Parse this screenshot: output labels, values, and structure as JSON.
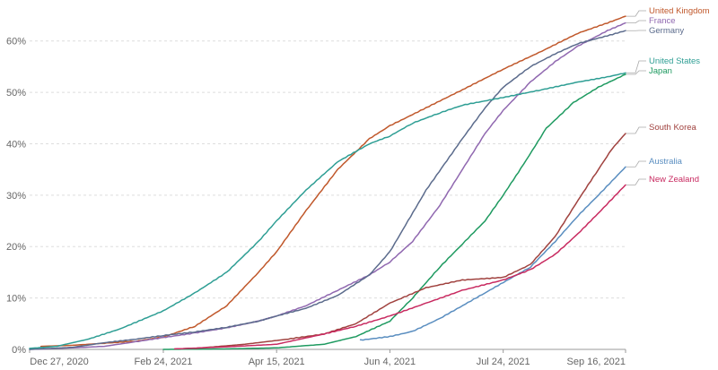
{
  "chart_data": {
    "type": "line",
    "title": "",
    "xlabel": "",
    "ylabel": "",
    "x_ticks": [
      "Dec 27, 2020",
      "Feb 24, 2021",
      "Apr 15, 2021",
      "Jun 4, 2021",
      "Jul 24, 2021",
      "Sep 16, 2021"
    ],
    "y_ticks": [
      "0%",
      "10%",
      "20%",
      "30%",
      "40%",
      "50%",
      "60%"
    ],
    "xlim": [
      "2020-12-27",
      "2021-09-16"
    ],
    "ylim": [
      0,
      65
    ],
    "grid": true,
    "legend": "end-of-line labels, right",
    "series": [
      {
        "name": "United Kingdom",
        "color": "#c0582b",
        "points": [
          [
            "2021-01-01",
            0.6
          ],
          [
            "2021-01-15",
            0.8
          ],
          [
            "2021-01-29",
            1.2
          ],
          [
            "2021-02-12",
            1.6
          ],
          [
            "2021-02-24",
            2.4
          ],
          [
            "2021-03-10",
            4.5
          ],
          [
            "2021-03-24",
            8.5
          ],
          [
            "2021-04-07",
            15
          ],
          [
            "2021-04-15",
            19
          ],
          [
            "2021-04-28",
            27
          ],
          [
            "2021-05-12",
            35
          ],
          [
            "2021-05-26",
            41
          ],
          [
            "2021-06-04",
            43.5
          ],
          [
            "2021-06-20",
            47
          ],
          [
            "2021-07-06",
            50.5
          ],
          [
            "2021-07-24",
            54.5
          ],
          [
            "2021-08-10",
            58
          ],
          [
            "2021-08-26",
            61.5
          ],
          [
            "2021-09-08",
            63.5
          ],
          [
            "2021-09-16",
            64.8
          ]
        ]
      },
      {
        "name": "France",
        "color": "#9068b0",
        "points": [
          [
            "2020-12-27",
            0
          ],
          [
            "2021-01-15",
            0.3
          ],
          [
            "2021-01-29",
            0.6
          ],
          [
            "2021-02-12",
            1.5
          ],
          [
            "2021-02-24",
            2.3
          ],
          [
            "2021-03-10",
            3.2
          ],
          [
            "2021-03-24",
            4.2
          ],
          [
            "2021-04-07",
            5.5
          ],
          [
            "2021-04-15",
            6.5
          ],
          [
            "2021-04-28",
            8.5
          ],
          [
            "2021-05-12",
            11.5
          ],
          [
            "2021-05-26",
            14.5
          ],
          [
            "2021-06-04",
            17
          ],
          [
            "2021-06-14",
            21
          ],
          [
            "2021-06-26",
            28
          ],
          [
            "2021-07-06",
            35
          ],
          [
            "2021-07-16",
            42
          ],
          [
            "2021-07-24",
            46.5
          ],
          [
            "2021-08-05",
            52
          ],
          [
            "2021-08-16",
            56
          ],
          [
            "2021-08-26",
            59
          ],
          [
            "2021-09-08",
            62
          ],
          [
            "2021-09-16",
            63.5
          ]
        ]
      },
      {
        "name": "Germany",
        "color": "#5b6b8c",
        "points": [
          [
            "2020-12-27",
            0
          ],
          [
            "2021-01-15",
            0.4
          ],
          [
            "2021-01-29",
            1.3
          ],
          [
            "2021-02-12",
            2
          ],
          [
            "2021-02-24",
            2.7
          ],
          [
            "2021-03-10",
            3.4
          ],
          [
            "2021-03-24",
            4.3
          ],
          [
            "2021-04-07",
            5.5
          ],
          [
            "2021-04-15",
            6.5
          ],
          [
            "2021-04-28",
            8
          ],
          [
            "2021-05-12",
            10.5
          ],
          [
            "2021-05-26",
            14.5
          ],
          [
            "2021-06-04",
            19
          ],
          [
            "2021-06-12",
            25
          ],
          [
            "2021-06-20",
            31
          ],
          [
            "2021-06-28",
            36
          ],
          [
            "2021-07-06",
            41
          ],
          [
            "2021-07-16",
            47
          ],
          [
            "2021-07-24",
            51
          ],
          [
            "2021-08-05",
            55
          ],
          [
            "2021-08-16",
            57.5
          ],
          [
            "2021-08-26",
            59.5
          ],
          [
            "2021-09-08",
            61
          ],
          [
            "2021-09-16",
            62
          ]
        ]
      },
      {
        "name": "United States",
        "color": "#2e9e94",
        "points": [
          [
            "2020-12-27",
            0.2
          ],
          [
            "2021-01-08",
            0.6
          ],
          [
            "2021-01-22",
            2
          ],
          [
            "2021-02-05",
            4
          ],
          [
            "2021-02-24",
            7.5
          ],
          [
            "2021-03-10",
            11
          ],
          [
            "2021-03-24",
            15
          ],
          [
            "2021-04-07",
            21
          ],
          [
            "2021-04-15",
            25
          ],
          [
            "2021-04-28",
            31
          ],
          [
            "2021-05-12",
            36.5
          ],
          [
            "2021-05-26",
            40
          ],
          [
            "2021-06-04",
            41.5
          ],
          [
            "2021-06-14",
            44
          ],
          [
            "2021-06-26",
            46
          ],
          [
            "2021-07-06",
            47.5
          ],
          [
            "2021-07-24",
            49
          ],
          [
            "2021-08-10",
            50.5
          ],
          [
            "2021-08-26",
            52
          ],
          [
            "2021-09-08",
            53
          ],
          [
            "2021-09-16",
            53.8
          ]
        ]
      },
      {
        "name": "Japan",
        "color": "#1e9a60",
        "points": [
          [
            "2021-02-24",
            0
          ],
          [
            "2021-03-24",
            0.1
          ],
          [
            "2021-04-15",
            0.3
          ],
          [
            "2021-05-06",
            1
          ],
          [
            "2021-05-20",
            2.5
          ],
          [
            "2021-06-04",
            5.5
          ],
          [
            "2021-06-14",
            10
          ],
          [
            "2021-06-26",
            16
          ],
          [
            "2021-07-06",
            20.5
          ],
          [
            "2021-07-16",
            25
          ],
          [
            "2021-07-24",
            30
          ],
          [
            "2021-08-02",
            36
          ],
          [
            "2021-08-12",
            43
          ],
          [
            "2021-08-24",
            48
          ],
          [
            "2021-09-04",
            51
          ],
          [
            "2021-09-16",
            53.5
          ]
        ]
      },
      {
        "name": "South Korea",
        "color": "#a0423f",
        "points": [
          [
            "2021-03-10",
            0.2
          ],
          [
            "2021-04-01",
            1
          ],
          [
            "2021-04-20",
            2
          ],
          [
            "2021-05-06",
            3
          ],
          [
            "2021-05-20",
            5
          ],
          [
            "2021-06-04",
            9
          ],
          [
            "2021-06-20",
            12
          ],
          [
            "2021-07-06",
            13.5
          ],
          [
            "2021-07-24",
            14
          ],
          [
            "2021-08-05",
            16.5
          ],
          [
            "2021-08-16",
            22
          ],
          [
            "2021-08-26",
            29
          ],
          [
            "2021-09-04",
            35
          ],
          [
            "2021-09-10",
            39
          ],
          [
            "2021-09-16",
            42
          ]
        ]
      },
      {
        "name": "Australia",
        "color": "#5a8ec0",
        "points": [
          [
            "2021-05-22",
            1.8
          ],
          [
            "2021-06-04",
            2.5
          ],
          [
            "2021-06-14",
            3.5
          ],
          [
            "2021-06-26",
            6
          ],
          [
            "2021-07-06",
            8.5
          ],
          [
            "2021-07-16",
            11
          ],
          [
            "2021-07-24",
            13
          ],
          [
            "2021-08-05",
            16
          ],
          [
            "2021-08-16",
            21
          ],
          [
            "2021-08-26",
            26
          ],
          [
            "2021-09-04",
            30
          ],
          [
            "2021-09-16",
            35.5
          ]
        ]
      },
      {
        "name": "New Zealand",
        "color": "#c82a60",
        "points": [
          [
            "2021-03-01",
            0.1
          ],
          [
            "2021-03-24",
            0.5
          ],
          [
            "2021-04-15",
            1
          ],
          [
            "2021-05-06",
            3
          ],
          [
            "2021-05-20",
            4.5
          ],
          [
            "2021-06-04",
            6.5
          ],
          [
            "2021-06-20",
            9
          ],
          [
            "2021-07-06",
            11.5
          ],
          [
            "2021-07-24",
            13.5
          ],
          [
            "2021-08-05",
            15.5
          ],
          [
            "2021-08-16",
            18.5
          ],
          [
            "2021-08-26",
            22.5
          ],
          [
            "2021-09-04",
            26.5
          ],
          [
            "2021-09-16",
            32
          ]
        ]
      }
    ]
  }
}
